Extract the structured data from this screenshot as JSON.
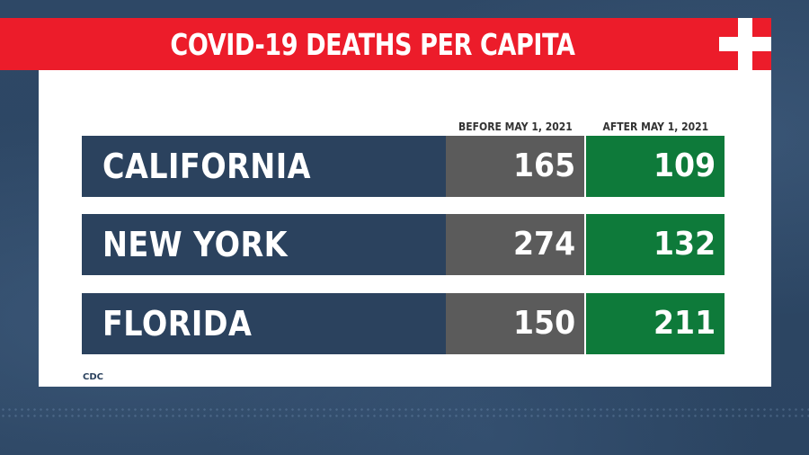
{
  "title": "COVID-19 DEATHS PER CAPITA",
  "source": "CDC",
  "colors": {
    "title_bar": "#ec1c2a",
    "row_label_bg": "#2b425e",
    "before_bg": "#5b5b5b",
    "after_bg": "#0e7a3a",
    "background": "#2f4a68",
    "panel": "#ffffff"
  },
  "icon": "medical-cross-icon",
  "chart_data": {
    "type": "table",
    "title": "COVID-19 DEATHS PER CAPITA",
    "columns": [
      "BEFORE MAY 1, 2021",
      "AFTER MAY 1, 2021"
    ],
    "rows": [
      {
        "label": "CALIFORNIA",
        "values": [
          "165",
          "109"
        ]
      },
      {
        "label": "NEW YORK",
        "values": [
          "274",
          "132"
        ]
      },
      {
        "label": "FLORIDA",
        "values": [
          "150",
          "211"
        ]
      }
    ],
    "series": [
      {
        "name": "BEFORE MAY 1, 2021",
        "values": [
          165,
          274,
          150
        ]
      },
      {
        "name": "AFTER MAY 1, 2021",
        "values": [
          109,
          132,
          211
        ]
      }
    ],
    "categories": [
      "CALIFORNIA",
      "NEW YORK",
      "FLORIDA"
    ]
  }
}
